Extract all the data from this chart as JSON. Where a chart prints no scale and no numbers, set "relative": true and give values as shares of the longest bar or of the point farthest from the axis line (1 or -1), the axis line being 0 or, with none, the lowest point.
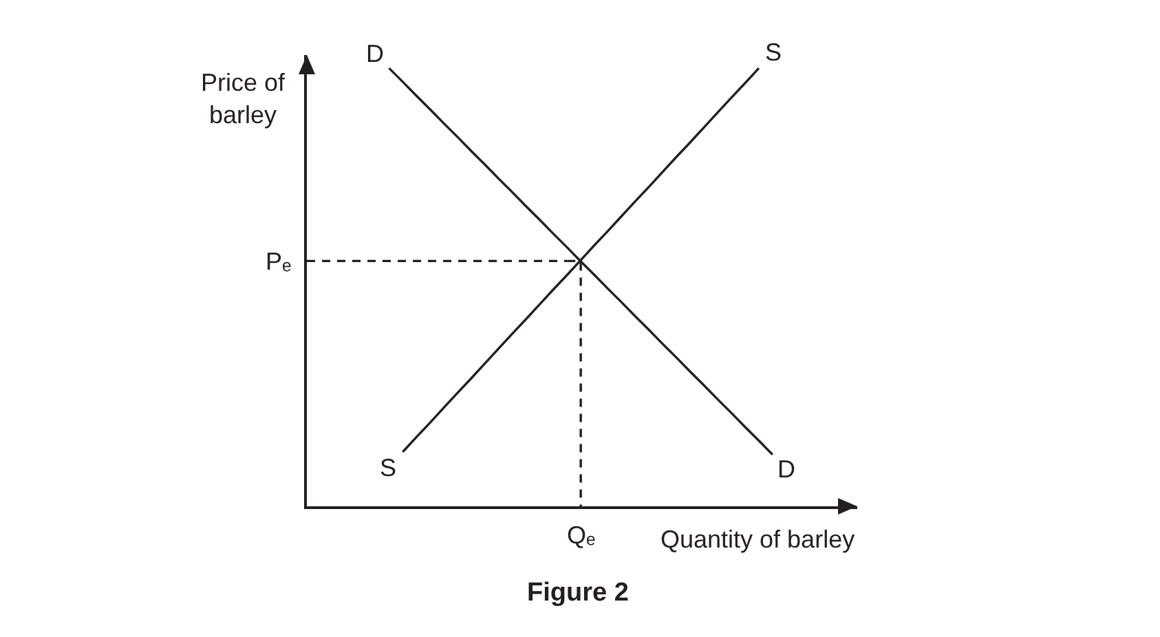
{
  "chart_data": {
    "type": "line",
    "title": "Figure 2",
    "xlabel": "Quantity of barley",
    "ylabel": "Price of barley",
    "relative": true,
    "categories": [
      null,
      null,
      null,
      null,
      null,
      null,
      null,
      null,
      null,
      null,
      null,
      null,
      null,
      null,
      null,
      null,
      null,
      null,
      null,
      null,
      null,
      null,
      null,
      null,
      null,
      null,
      null,
      null,
      null,
      null,
      null,
      null,
      null,
      null,
      null
    ],
    "series": [
      {
        "name": "D",
        "color": "#231f20",
        "values": [
          null,
          null,
          null,
          null,
          null,
          null,
          1.0,
          0.969,
          0.937,
          0.906,
          0.874,
          0.843,
          0.811,
          0.78,
          0.748,
          0.717,
          0.685,
          0.654,
          0.622,
          0.591,
          0.559,
          0.528,
          0.496,
          0.465,
          0.433,
          0.402,
          0.37,
          0.339,
          0.307,
          0.276,
          0.244,
          0.213,
          0.181,
          0.15,
          0.118
        ]
      },
      {
        "name": "S",
        "color": "#231f20",
        "values": [
          null,
          null,
          null,
          null,
          null,
          null,
          null,
          0.124,
          0.158,
          0.191,
          0.225,
          0.259,
          0.292,
          0.326,
          0.36,
          0.394,
          0.427,
          0.461,
          0.495,
          0.528,
          0.562,
          0.596,
          0.629,
          0.663,
          0.697,
          0.73,
          0.764,
          0.798,
          0.831,
          0.865,
          0.899,
          0.933,
          0.966,
          1.0,
          null
        ]
      },
      {
        "name": "Pₑ",
        "line_style": "dashed",
        "color": "#231f20",
        "values": [
          0.56,
          0.56,
          0.56,
          0.56,
          0.56,
          0.56,
          0.56,
          0.56,
          0.56,
          0.56,
          0.56,
          0.56,
          0.56,
          0.56,
          0.56,
          0.56,
          0.56,
          0.56,
          0.56,
          0.56,
          null,
          null,
          null,
          null,
          null,
          null,
          null,
          null,
          null,
          null,
          null,
          null,
          null,
          null,
          null
        ]
      },
      {
        "name": "Qₑ",
        "type": "step",
        "line_style": "dashed",
        "color": "#231f20",
        "values": [
          null,
          null,
          null,
          null,
          null,
          null,
          null,
          null,
          null,
          null,
          null,
          null,
          null,
          null,
          null,
          null,
          null,
          null,
          null,
          0.56,
          0,
          null,
          null,
          null,
          null,
          null,
          null,
          null,
          null,
          null,
          null,
          null,
          null,
          null,
          null
        ]
      }
    ]
  }
}
